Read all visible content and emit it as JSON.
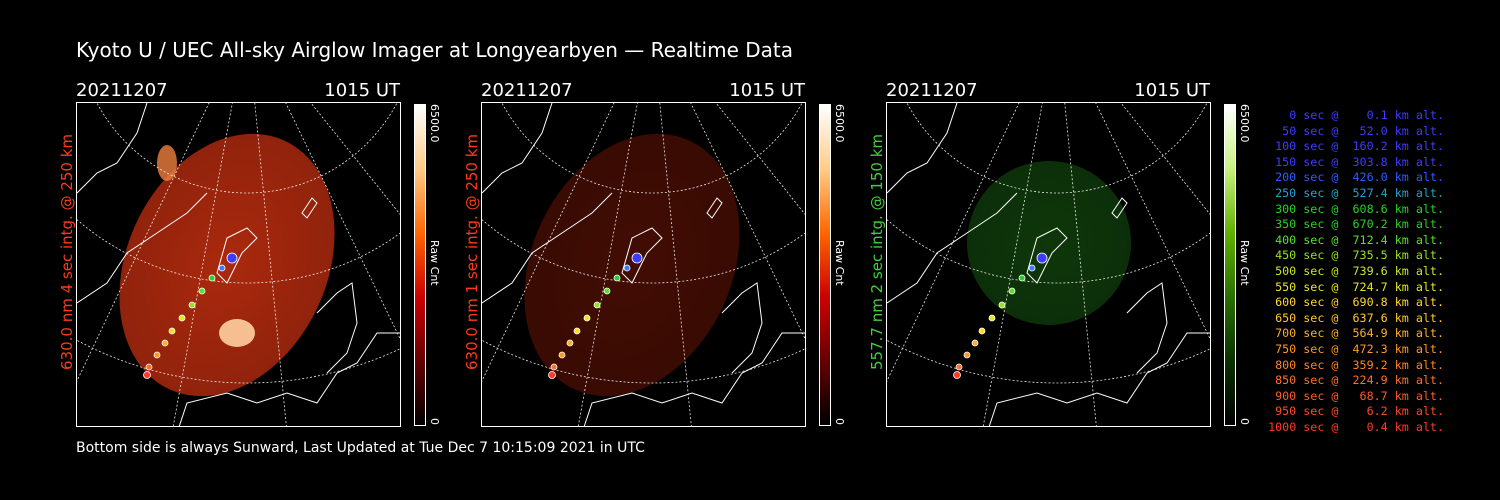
{
  "title": "Kyoto U / UEC All-sky Airglow Imager at Longyearbyen — Realtime Data",
  "footer": "Bottom side is always Sunward, Last Updated at Tue Dec  7 10:15:09 2021 in UTC",
  "panels": [
    {
      "date": "20211207",
      "time": "1015 UT",
      "ylabel": "630.0 nm 4 sec intg. @ 250 km",
      "ylabel_color": "#ff3a1a",
      "cbar_max": "6500.0",
      "cbar_min": "0",
      "cbar_label": "Raw Cnt",
      "map_color": "#c83010",
      "map_alpha": 0.85
    },
    {
      "date": "20211207",
      "time": "1015 UT",
      "ylabel": "630.0 nm 1 sec intg. @ 250 km",
      "ylabel_color": "#ff3a1a",
      "cbar_max": "6500.0",
      "cbar_min": "0",
      "cbar_label": "Raw Cnt",
      "map_color": "#4a0e04",
      "map_alpha": 0.9
    },
    {
      "date": "20211207",
      "time": "1015 UT",
      "ylabel": "557.7 nm 2 sec intg. @ 150 km",
      "ylabel_color": "#3fd13a",
      "cbar_max": "6500.0",
      "cbar_min": "0",
      "cbar_label": "Raw Cnt",
      "map_color": "#0f3a0b",
      "map_alpha": 0.95
    }
  ],
  "legend": [
    {
      "text": "0 sec @    0.1 km alt.",
      "color": "#3c3cff"
    },
    {
      "text": "50 sec @   52.0 km alt.",
      "color": "#3c3cff"
    },
    {
      "text": "100 sec @  160.2 km alt.",
      "color": "#3c3cff"
    },
    {
      "text": "150 sec @  303.8 km alt.",
      "color": "#3c3cff"
    },
    {
      "text": "200 sec @  426.0 km alt.",
      "color": "#2c5cff"
    },
    {
      "text": "250 sec @  527.4 km alt.",
      "color": "#2aa0c8"
    },
    {
      "text": "300 sec @  608.6 km alt.",
      "color": "#28d028"
    },
    {
      "text": "350 sec @  670.2 km alt.",
      "color": "#28d028"
    },
    {
      "text": "400 sec @  712.4 km alt.",
      "color": "#5ae028"
    },
    {
      "text": "450 sec @  735.5 km alt.",
      "color": "#96e028"
    },
    {
      "text": "500 sec @  739.6 km alt.",
      "color": "#c8e628"
    },
    {
      "text": "550 sec @  724.7 km alt.",
      "color": "#e6e628"
    },
    {
      "text": "600 sec @  690.8 km alt.",
      "color": "#ffd828"
    },
    {
      "text": "650 sec @  637.6 km alt.",
      "color": "#ffc828"
    },
    {
      "text": "700 sec @  564.9 km alt.",
      "color": "#ffb028"
    },
    {
      "text": "750 sec @  472.3 km alt.",
      "color": "#ff9828"
    },
    {
      "text": "800 sec @  359.2 km alt.",
      "color": "#ff8428"
    },
    {
      "text": "850 sec @  224.9 km alt.",
      "color": "#ff7028"
    },
    {
      "text": "900 sec @   68.7 km alt.",
      "color": "#ff5a28"
    },
    {
      "text": "950 sec @    6.2 km alt.",
      "color": "#ff4828"
    },
    {
      "text": "1000 sec @    0.4 km alt.",
      "color": "#ff3a28"
    }
  ]
}
